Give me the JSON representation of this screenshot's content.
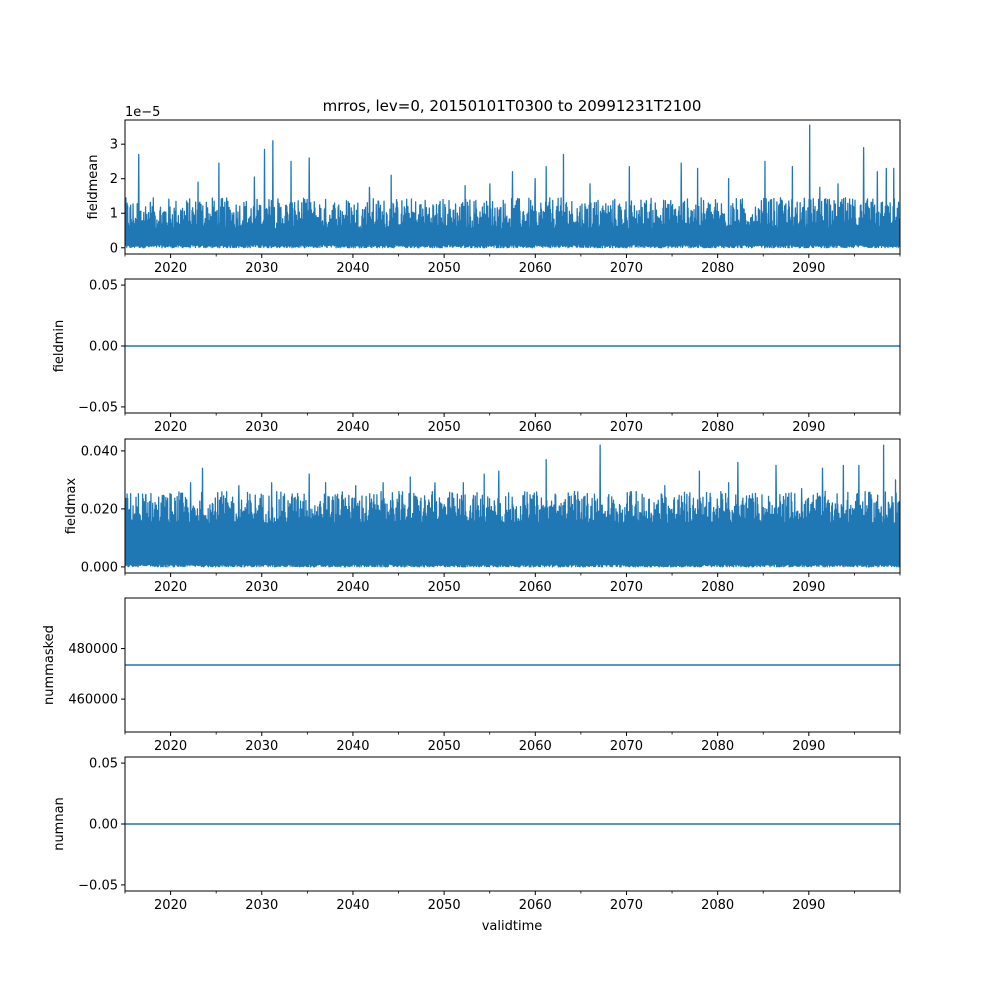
{
  "title": "mrros, lev=0, 20150101T0300 to 20991231T2100",
  "xlabel": "validtime",
  "xticks": [
    "2020",
    "2030",
    "2040",
    "2050",
    "2060",
    "2070",
    "2080",
    "2090"
  ],
  "colors": {
    "series": "#1f77b4",
    "axes": "#000000",
    "background": "#ffffff"
  },
  "chart_data": [
    {
      "type": "line",
      "name": "fieldmean",
      "ylabel": "fieldmean",
      "offset_text": "1e−5",
      "xlim": [
        2015.0,
        2100.0
      ],
      "ylim": [
        -0.18,
        3.7
      ],
      "yticks": [
        {
          "v": 0,
          "label": "0"
        },
        {
          "v": 1,
          "label": "1"
        },
        {
          "v": 2,
          "label": "2"
        },
        {
          "v": 3,
          "label": "3"
        }
      ],
      "baseline": [
        0.0,
        0.1
      ],
      "envelope": [
        0.55,
        1.45
      ],
      "peaks": [
        [
          2016.5,
          2.7
        ],
        [
          2023.0,
          1.9
        ],
        [
          2025.3,
          2.45
        ],
        [
          2029.2,
          2.05
        ],
        [
          2030.3,
          2.85
        ],
        [
          2031.2,
          3.1
        ],
        [
          2033.2,
          2.5
        ],
        [
          2035.2,
          2.6
        ],
        [
          2041.8,
          1.75
        ],
        [
          2044.2,
          2.1
        ],
        [
          2052.3,
          1.8
        ],
        [
          2055.0,
          1.85
        ],
        [
          2057.5,
          2.2
        ],
        [
          2060.0,
          2.0
        ],
        [
          2061.2,
          2.35
        ],
        [
          2063.1,
          2.7
        ],
        [
          2066.0,
          1.85
        ],
        [
          2070.3,
          2.35
        ],
        [
          2076.0,
          2.45
        ],
        [
          2077.8,
          2.3
        ],
        [
          2081.2,
          2.0
        ],
        [
          2085.2,
          2.5
        ],
        [
          2088.2,
          2.35
        ],
        [
          2090.1,
          3.55
        ],
        [
          2091.2,
          1.75
        ],
        [
          2093.2,
          1.85
        ],
        [
          2096.0,
          2.9
        ],
        [
          2097.5,
          2.2
        ],
        [
          2098.5,
          2.3
        ],
        [
          2099.3,
          2.3
        ]
      ]
    },
    {
      "type": "line",
      "name": "fieldmin",
      "ylabel": "fieldmin",
      "xlim": [
        2015.0,
        2100.0
      ],
      "ylim": [
        -0.055,
        0.055
      ],
      "yticks": [
        {
          "v": -0.05,
          "label": "−0.05"
        },
        {
          "v": 0.0,
          "label": "0.00"
        },
        {
          "v": 0.05,
          "label": "0.05"
        }
      ],
      "constant": 0.0
    },
    {
      "type": "line",
      "name": "fieldmax",
      "ylabel": "fieldmax",
      "xlim": [
        2015.0,
        2100.0
      ],
      "ylim": [
        -0.0021,
        0.0441
      ],
      "yticks": [
        {
          "v": 0.0,
          "label": "0.000"
        },
        {
          "v": 0.02,
          "label": "0.020"
        },
        {
          "v": 0.04,
          "label": "0.040"
        }
      ],
      "baseline": [
        0.0,
        0.001
      ],
      "envelope": [
        0.015,
        0.026
      ],
      "peaks": [
        [
          2017.3,
          0.025
        ],
        [
          2022.2,
          0.029
        ],
        [
          2023.5,
          0.034
        ],
        [
          2027.5,
          0.028
        ],
        [
          2031.1,
          0.029
        ],
        [
          2035.2,
          0.032
        ],
        [
          2037.0,
          0.029
        ],
        [
          2040.3,
          0.028
        ],
        [
          2043.3,
          0.029
        ],
        [
          2046.3,
          0.031
        ],
        [
          2049.0,
          0.029
        ],
        [
          2052.1,
          0.029
        ],
        [
          2054.4,
          0.032
        ],
        [
          2056.0,
          0.033
        ],
        [
          2061.2,
          0.037
        ],
        [
          2064.3,
          0.026
        ],
        [
          2067.1,
          0.042
        ],
        [
          2070.5,
          0.026
        ],
        [
          2074.2,
          0.028
        ],
        [
          2078.0,
          0.033
        ],
        [
          2081.2,
          0.029
        ],
        [
          2082.2,
          0.036
        ],
        [
          2086.4,
          0.035
        ],
        [
          2089.2,
          0.027
        ],
        [
          2091.5,
          0.034
        ],
        [
          2093.8,
          0.035
        ],
        [
          2095.5,
          0.035
        ],
        [
          2098.2,
          0.042
        ],
        [
          2099.5,
          0.03
        ]
      ]
    },
    {
      "type": "line",
      "name": "nummasked",
      "ylabel": "nummasked",
      "xlim": [
        2015.0,
        2100.0
      ],
      "ylim": [
        447000,
        500000
      ],
      "yticks": [
        {
          "v": 460000,
          "label": "460000"
        },
        {
          "v": 480000,
          "label": "480000"
        }
      ],
      "constant": 473500
    },
    {
      "type": "line",
      "name": "numnan",
      "ylabel": "numnan",
      "xlim": [
        2015.0,
        2100.0
      ],
      "ylim": [
        -0.055,
        0.055
      ],
      "yticks": [
        {
          "v": -0.05,
          "label": "−0.05"
        },
        {
          "v": 0.0,
          "label": "0.00"
        },
        {
          "v": 0.05,
          "label": "0.05"
        }
      ],
      "constant": 0.0
    }
  ]
}
